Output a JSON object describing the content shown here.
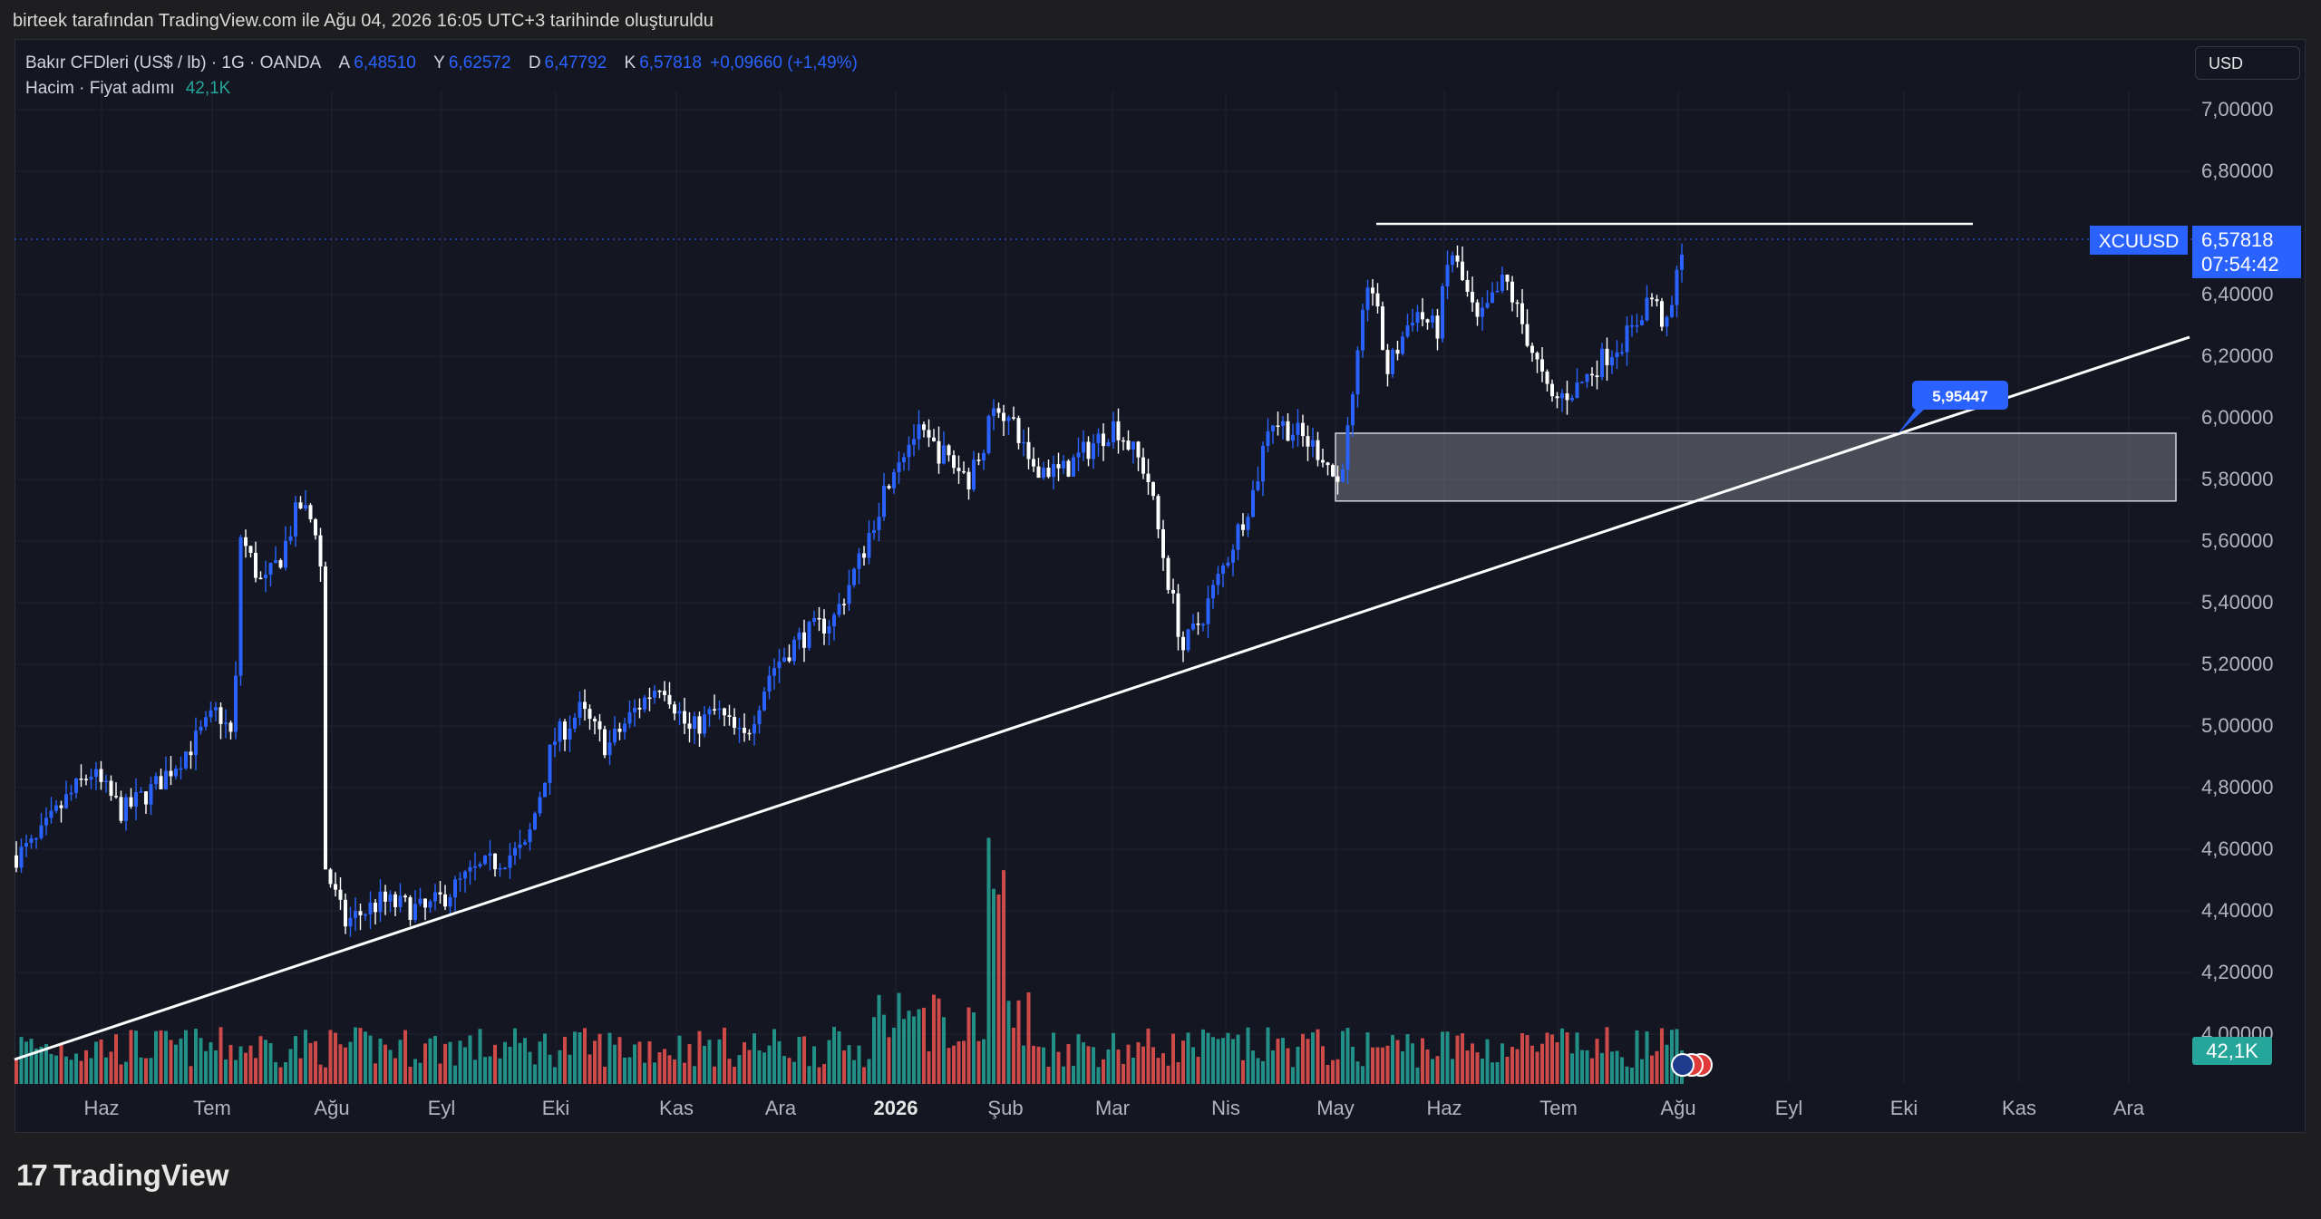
{
  "header": {
    "title": "birteek tarafından TradingView.com ile Ağu 04, 2026 16:05 UTC+3 tarihinde oluşturuldu"
  },
  "legend": {
    "symbol": "Bakır CFDleri (US$ / lb) · 1G · OANDA",
    "open_label": "A",
    "open": "6,48510",
    "high_label": "Y",
    "high": "6,62572",
    "low_label": "D",
    "low": "6,47792",
    "close_label": "K",
    "close": "6,57818",
    "change": "+0,09660 (+1,49%)",
    "volume_label": "Hacim · Fiyat adımı",
    "volume_value": "42,1K"
  },
  "currency": "USD",
  "price_axis": {
    "ticks": [
      "7,00000",
      "6,80000",
      "6,40000",
      "6,20000",
      "6,00000",
      "5,80000",
      "5,60000",
      "5,40000",
      "5,20000",
      "5,00000",
      "4,80000",
      "4,60000",
      "4,40000",
      "4,20000",
      "4,00000"
    ],
    "current_symbol": "XCUUSD",
    "current_price": "6,57818",
    "countdown": "07:54:42",
    "volume_badge": "42,1K"
  },
  "time_axis": {
    "labels": [
      "Haz",
      "Tem",
      "Ağu",
      "Eyl",
      "Eki",
      "Kas",
      "Ara",
      "2026",
      "Şub",
      "Mar",
      "Nis",
      "May",
      "Haz",
      "Tem",
      "Ağu",
      "Eyl",
      "Eki",
      "Kas",
      "Ara"
    ]
  },
  "annotations": {
    "trendline_label": "5,95447"
  },
  "colors": {
    "up": "#2962ff",
    "down": "#ffffff",
    "vol_up": "#26a69a",
    "vol_down": "#ef5350",
    "bg": "#141722",
    "accent": "#2962ff"
  },
  "logo": {
    "text": "TradingView"
  },
  "chart_data": {
    "type": "candlestick",
    "ylim": [
      3.95,
      7.05
    ],
    "price_data": [
      {
        "x": "2025-06",
        "y": 4.65
      },
      {
        "x": "2025-06-mid",
        "y": 4.9
      },
      {
        "x": "2025-07",
        "y": 4.95
      },
      {
        "x": "2025-07-mid",
        "y": 5.1
      },
      {
        "x": "2025-07-late",
        "y": 5.85
      },
      {
        "x": "2025-08",
        "y": 4.35
      },
      {
        "x": "2025-09",
        "y": 4.45
      },
      {
        "x": "2025-10",
        "y": 5.05
      },
      {
        "x": "2025-11",
        "y": 5.0
      },
      {
        "x": "2025-12",
        "y": 5.35
      },
      {
        "x": "2026-01",
        "y": 5.95
      },
      {
        "x": "2026-02",
        "y": 6.0
      },
      {
        "x": "2026-03",
        "y": 5.85
      },
      {
        "x": "2026-04",
        "y": 5.25
      },
      {
        "x": "2026-05",
        "y": 6.0
      },
      {
        "x": "2026-06",
        "y": 6.45
      },
      {
        "x": "2026-07",
        "y": 6.1
      },
      {
        "x": "2026-08",
        "y": 6.58
      }
    ],
    "resistance": 6.62,
    "support_zone": [
      5.73,
      5.95
    ],
    "trendline_value": 5.95447
  }
}
